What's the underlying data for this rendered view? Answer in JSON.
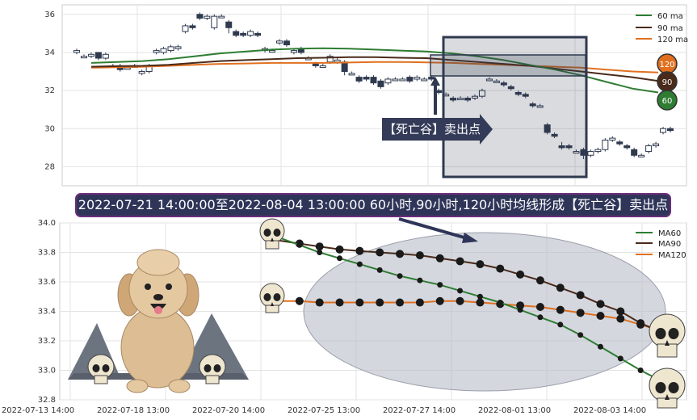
{
  "callout": {
    "text": "2022-07-21 14:00:00至2022-08-04 13:00:00 60小时,90小时,120小时均线形成【死亡谷】卖出点"
  },
  "arrow_label": "【死亡谷】卖出点",
  "colors": {
    "ma60": "#2e7d32",
    "ma90": "#4a2a1a",
    "ma120": "#e07020",
    "candle": "#2f3a4f",
    "box": "#2f3a4f",
    "ellipse": "#b8bcc8"
  },
  "chart_data": [
    {
      "type": "candlestick",
      "title": "",
      "ylim": [
        27,
        36.5
      ],
      "yticks": [
        28,
        30,
        32,
        34,
        36
      ],
      "grid": true,
      "legend_position": "top-right",
      "legend": [
        "60 ma",
        "90 ma",
        "120 ma"
      ],
      "badges": [
        "120",
        "90",
        "60"
      ],
      "candles": [
        {
          "o": 34.0,
          "c": 34.1,
          "h": 34.2,
          "l": 33.9
        },
        {
          "o": 33.8,
          "c": 33.8,
          "h": 33.9,
          "l": 33.7
        },
        {
          "o": 33.8,
          "c": 33.9,
          "h": 34.0,
          "l": 33.7
        },
        {
          "o": 34.0,
          "c": 33.7,
          "h": 34.0,
          "l": 33.6
        },
        {
          "o": 33.7,
          "c": 33.9,
          "h": 34.0,
          "l": 33.6
        },
        {
          "o": 33.3,
          "c": 33.3,
          "h": 33.4,
          "l": 33.2
        },
        {
          "o": 33.3,
          "c": 33.1,
          "h": 33.4,
          "l": 33.0
        },
        {
          "o": 33.2,
          "c": 33.2,
          "h": 33.3,
          "l": 33.1
        },
        {
          "o": 33.3,
          "c": 33.3,
          "h": 33.4,
          "l": 33.2
        },
        {
          "o": 32.9,
          "c": 33.0,
          "h": 33.1,
          "l": 32.8
        },
        {
          "o": 33.0,
          "c": 33.3,
          "h": 33.4,
          "l": 32.9
        },
        {
          "o": 34.0,
          "c": 34.1,
          "h": 34.2,
          "l": 33.9
        },
        {
          "o": 34.0,
          "c": 34.2,
          "h": 34.3,
          "l": 33.9
        },
        {
          "o": 34.1,
          "c": 34.3,
          "h": 34.4,
          "l": 34.0
        },
        {
          "o": 34.2,
          "c": 34.3,
          "h": 34.4,
          "l": 34.1
        },
        {
          "o": 35.1,
          "c": 35.4,
          "h": 35.5,
          "l": 35.0
        },
        {
          "o": 35.4,
          "c": 35.3,
          "h": 35.5,
          "l": 35.2
        },
        {
          "o": 36.0,
          "c": 35.8,
          "h": 36.1,
          "l": 35.7
        },
        {
          "o": 35.8,
          "c": 35.9,
          "h": 36.0,
          "l": 35.7
        },
        {
          "o": 35.3,
          "c": 35.9,
          "h": 36.0,
          "l": 35.2
        },
        {
          "o": 35.9,
          "c": 35.9,
          "h": 36.0,
          "l": 35.8
        },
        {
          "o": 35.6,
          "c": 35.3,
          "h": 35.7,
          "l": 35.0
        },
        {
          "o": 35.1,
          "c": 34.9,
          "h": 35.2,
          "l": 34.8
        },
        {
          "o": 35.0,
          "c": 34.9,
          "h": 35.1,
          "l": 34.8
        },
        {
          "o": 34.9,
          "c": 35.1,
          "h": 35.2,
          "l": 34.8
        },
        {
          "o": 35.0,
          "c": 34.9,
          "h": 35.1,
          "l": 34.8
        },
        {
          "o": 34.1,
          "c": 34.2,
          "h": 34.3,
          "l": 34.0
        },
        {
          "o": 34.1,
          "c": 34.1,
          "h": 34.2,
          "l": 34.0
        },
        {
          "o": 34.5,
          "c": 34.6,
          "h": 34.7,
          "l": 34.4
        },
        {
          "o": 34.6,
          "c": 34.4,
          "h": 34.7,
          "l": 34.3
        },
        {
          "o": 34.0,
          "c": 34.1,
          "h": 34.2,
          "l": 33.9
        },
        {
          "o": 34.2,
          "c": 34.0,
          "h": 34.3,
          "l": 33.9
        },
        {
          "o": 33.7,
          "c": 33.7,
          "h": 33.8,
          "l": 33.6
        },
        {
          "o": 33.4,
          "c": 33.3,
          "h": 33.5,
          "l": 33.2
        },
        {
          "o": 33.3,
          "c": 33.3,
          "h": 33.4,
          "l": 33.2
        },
        {
          "o": 33.5,
          "c": 33.8,
          "h": 33.9,
          "l": 33.4
        },
        {
          "o": 33.5,
          "c": 33.6,
          "h": 33.7,
          "l": 33.4
        },
        {
          "o": 33.5,
          "c": 33.0,
          "h": 33.6,
          "l": 32.8
        },
        {
          "o": 32.9,
          "c": 32.9,
          "h": 33.0,
          "l": 32.8
        },
        {
          "o": 32.7,
          "c": 32.5,
          "h": 32.8,
          "l": 32.4
        },
        {
          "o": 32.7,
          "c": 32.6,
          "h": 32.8,
          "l": 32.5
        },
        {
          "o": 32.7,
          "c": 32.4,
          "h": 32.8,
          "l": 32.3
        },
        {
          "o": 32.5,
          "c": 32.2,
          "h": 32.6,
          "l": 32.1
        },
        {
          "o": 32.4,
          "c": 32.6,
          "h": 32.7,
          "l": 32.3
        },
        {
          "o": 32.6,
          "c": 32.6,
          "h": 32.7,
          "l": 32.5
        },
        {
          "o": 32.6,
          "c": 32.6,
          "h": 32.7,
          "l": 32.5
        },
        {
          "o": 32.7,
          "c": 32.5,
          "h": 32.8,
          "l": 32.4
        },
        {
          "o": 32.6,
          "c": 32.7,
          "h": 32.8,
          "l": 32.5
        },
        {
          "o": 32.6,
          "c": 32.6,
          "h": 32.7,
          "l": 32.5
        },
        {
          "o": 32.7,
          "c": 32.6,
          "h": 32.8,
          "l": 32.5
        },
        {
          "o": 32.0,
          "c": 31.9,
          "h": 32.1,
          "l": 31.8
        },
        {
          "o": 31.8,
          "c": 31.8,
          "h": 31.9,
          "l": 31.7
        },
        {
          "o": 31.6,
          "c": 31.5,
          "h": 31.7,
          "l": 31.4
        },
        {
          "o": 31.6,
          "c": 31.6,
          "h": 31.7,
          "l": 31.5
        },
        {
          "o": 31.6,
          "c": 31.5,
          "h": 31.7,
          "l": 31.4
        },
        {
          "o": 31.6,
          "c": 31.7,
          "h": 31.8,
          "l": 31.5
        },
        {
          "o": 31.7,
          "c": 32.0,
          "h": 32.1,
          "l": 31.6
        },
        {
          "o": 32.6,
          "c": 32.6,
          "h": 32.7,
          "l": 32.5
        },
        {
          "o": 32.5,
          "c": 32.5,
          "h": 32.6,
          "l": 32.4
        },
        {
          "o": 32.4,
          "c": 32.3,
          "h": 32.5,
          "l": 32.2
        },
        {
          "o": 32.2,
          "c": 32.1,
          "h": 32.3,
          "l": 32.0
        },
        {
          "o": 31.9,
          "c": 31.8,
          "h": 32.0,
          "l": 31.7
        },
        {
          "o": 31.8,
          "c": 31.7,
          "h": 31.9,
          "l": 31.6
        },
        {
          "o": 31.3,
          "c": 31.2,
          "h": 31.4,
          "l": 31.1
        },
        {
          "o": 31.2,
          "c": 31.2,
          "h": 31.3,
          "l": 31.1
        },
        {
          "o": 30.2,
          "c": 29.8,
          "h": 30.3,
          "l": 29.7
        },
        {
          "o": 29.7,
          "c": 29.6,
          "h": 29.8,
          "l": 29.5
        },
        {
          "o": 29.1,
          "c": 29.0,
          "h": 29.3,
          "l": 28.9
        },
        {
          "o": 29.1,
          "c": 29.0,
          "h": 29.2,
          "l": 28.9
        },
        {
          "o": 28.8,
          "c": 28.8,
          "h": 28.9,
          "l": 28.7
        },
        {
          "o": 28.9,
          "c": 28.6,
          "h": 29.0,
          "l": 28.4
        },
        {
          "o": 28.6,
          "c": 28.8,
          "h": 28.9,
          "l": 28.5
        },
        {
          "o": 28.8,
          "c": 28.9,
          "h": 29.0,
          "l": 28.7
        },
        {
          "o": 28.9,
          "c": 29.4,
          "h": 29.5,
          "l": 28.8
        },
        {
          "o": 29.4,
          "c": 29.5,
          "h": 29.6,
          "l": 29.3
        },
        {
          "o": 29.3,
          "c": 29.2,
          "h": 29.4,
          "l": 29.1
        },
        {
          "o": 29.1,
          "c": 29.0,
          "h": 29.2,
          "l": 28.9
        },
        {
          "o": 28.9,
          "c": 28.6,
          "h": 29.0,
          "l": 28.5
        },
        {
          "o": 28.6,
          "c": 28.6,
          "h": 28.7,
          "l": 28.5
        },
        {
          "o": 28.8,
          "c": 29.1,
          "h": 29.2,
          "l": 28.7
        },
        {
          "o": 29.1,
          "c": 29.2,
          "h": 29.3,
          "l": 29.0
        },
        {
          "o": 29.8,
          "c": 30.0,
          "h": 30.1,
          "l": 29.7
        },
        {
          "o": 30.0,
          "c": 29.9,
          "h": 30.1,
          "l": 29.8
        }
      ],
      "ma60": [
        33.45,
        33.5,
        33.55,
        33.65,
        33.8,
        33.95,
        34.05,
        34.15,
        34.2,
        34.22,
        34.2,
        34.15,
        34.1,
        34.05,
        33.95,
        33.8,
        33.6,
        33.35,
        33.1,
        32.8,
        32.45,
        32.1,
        31.9
      ],
      "ma90": [
        33.25,
        33.28,
        33.3,
        33.35,
        33.45,
        33.55,
        33.6,
        33.65,
        33.7,
        33.72,
        33.75,
        33.75,
        33.72,
        33.7,
        33.6,
        33.5,
        33.4,
        33.3,
        33.15,
        33.0,
        32.85,
        32.7,
        32.5
      ],
      "ma120": [
        33.2,
        33.22,
        33.25,
        33.3,
        33.35,
        33.4,
        33.42,
        33.45,
        33.45,
        33.45,
        33.47,
        33.5,
        33.5,
        33.48,
        33.45,
        33.4,
        33.35,
        33.3,
        33.25,
        33.2,
        33.1,
        33.0,
        32.95
      ]
    },
    {
      "type": "line",
      "title": "",
      "ylim": [
        32.8,
        34.0
      ],
      "yticks": [
        "32.8",
        "33.0",
        "33.2",
        "33.4",
        "33.6",
        "33.8",
        "34.0"
      ],
      "xticks": [
        "2022-07-13 14:00",
        "2022-07-18 13:00",
        "2022-07-20 14:00",
        "2022-07-25 13:00",
        "2022-07-27 14:00",
        "2022-08-01 13:00",
        "2022-08-03 14:00"
      ],
      "grid": true,
      "legend_position": "top-right",
      "series": [
        {
          "name": "MA60",
          "values": [
            33.9,
            33.85,
            33.8,
            33.76,
            33.72,
            33.68,
            33.64,
            33.61,
            33.58,
            33.54,
            33.5,
            33.46,
            33.41,
            33.36,
            33.31,
            33.24,
            33.16,
            33.08,
            33.0,
            32.93
          ]
        },
        {
          "name": "MA90",
          "values": [
            33.88,
            33.86,
            33.84,
            33.82,
            33.81,
            33.8,
            33.79,
            33.78,
            33.76,
            33.74,
            33.72,
            33.69,
            33.65,
            33.61,
            33.56,
            33.51,
            33.45,
            33.4,
            33.32,
            33.26
          ]
        },
        {
          "name": "MA120",
          "values": [
            33.47,
            33.47,
            33.46,
            33.46,
            33.46,
            33.46,
            33.46,
            33.46,
            33.47,
            33.47,
            33.46,
            33.45,
            33.44,
            33.43,
            33.41,
            33.39,
            33.37,
            33.35,
            33.31,
            33.27
          ]
        }
      ]
    }
  ]
}
